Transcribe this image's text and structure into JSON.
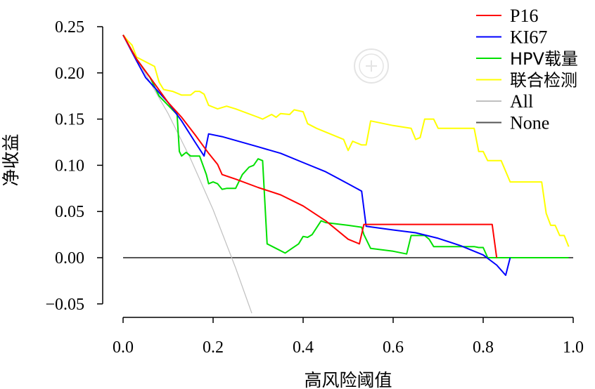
{
  "chart_data": {
    "type": "line",
    "title": "",
    "xlabel": "高风险阈值",
    "ylabel": "净收益",
    "xlim": [
      0,
      1.0
    ],
    "ylim": [
      -0.06,
      0.25
    ],
    "x_ticks": [
      "0.0",
      "0.2",
      "0.4",
      "0.6",
      "0.8",
      "1.0"
    ],
    "y_ticks": [
      "0.25",
      "0.20",
      "0.15",
      "0.10",
      "0.05",
      "0.00",
      "−0.05"
    ],
    "x_tick_values": [
      0,
      0.2,
      0.4,
      0.6,
      0.8,
      1.0
    ],
    "y_tick_values": [
      0.25,
      0.2,
      0.15,
      0.1,
      0.05,
      0.0,
      -0.05
    ],
    "legend_position": "top-right",
    "grid": false,
    "series": [
      {
        "name": "P16",
        "color": "#ff0000",
        "points": [
          [
            0.0,
            0.241
          ],
          [
            0.03,
            0.215
          ],
          [
            0.06,
            0.195
          ],
          [
            0.1,
            0.168
          ],
          [
            0.13,
            0.152
          ],
          [
            0.16,
            0.133
          ],
          [
            0.19,
            0.113
          ],
          [
            0.21,
            0.101
          ],
          [
            0.22,
            0.09
          ],
          [
            0.25,
            0.085
          ],
          [
            0.3,
            0.076
          ],
          [
            0.35,
            0.068
          ],
          [
            0.4,
            0.056
          ],
          [
            0.45,
            0.04
          ],
          [
            0.5,
            0.02
          ],
          [
            0.525,
            0.015
          ],
          [
            0.535,
            0.036
          ],
          [
            0.82,
            0.036
          ],
          [
            0.83,
            0.0
          ]
        ]
      },
      {
        "name": "KI67",
        "color": "#0000ff",
        "points": [
          [
            0.0,
            0.241
          ],
          [
            0.03,
            0.213
          ],
          [
            0.05,
            0.195
          ],
          [
            0.1,
            0.168
          ],
          [
            0.13,
            0.148
          ],
          [
            0.16,
            0.125
          ],
          [
            0.18,
            0.11
          ],
          [
            0.19,
            0.134
          ],
          [
            0.22,
            0.131
          ],
          [
            0.3,
            0.12
          ],
          [
            0.35,
            0.113
          ],
          [
            0.4,
            0.103
          ],
          [
            0.45,
            0.093
          ],
          [
            0.5,
            0.08
          ],
          [
            0.53,
            0.072
          ],
          [
            0.54,
            0.034
          ],
          [
            0.6,
            0.03
          ],
          [
            0.65,
            0.027
          ],
          [
            0.7,
            0.021
          ],
          [
            0.75,
            0.013
          ],
          [
            0.8,
            0.003
          ],
          [
            0.83,
            -0.008
          ],
          [
            0.85,
            -0.019
          ],
          [
            0.86,
            0.0
          ]
        ]
      },
      {
        "name": "HPV载量",
        "color": "#00e000",
        "points": [
          [
            0.0,
            0.241
          ],
          [
            0.03,
            0.215
          ],
          [
            0.06,
            0.195
          ],
          [
            0.08,
            0.175
          ],
          [
            0.1,
            0.165
          ],
          [
            0.12,
            0.155
          ],
          [
            0.125,
            0.115
          ],
          [
            0.13,
            0.11
          ],
          [
            0.14,
            0.114
          ],
          [
            0.15,
            0.11
          ],
          [
            0.17,
            0.11
          ],
          [
            0.185,
            0.09
          ],
          [
            0.19,
            0.08
          ],
          [
            0.2,
            0.082
          ],
          [
            0.21,
            0.08
          ],
          [
            0.22,
            0.074
          ],
          [
            0.23,
            0.075
          ],
          [
            0.25,
            0.075
          ],
          [
            0.265,
            0.09
          ],
          [
            0.28,
            0.098
          ],
          [
            0.29,
            0.1
          ],
          [
            0.3,
            0.107
          ],
          [
            0.31,
            0.105
          ],
          [
            0.32,
            0.015
          ],
          [
            0.34,
            0.01
          ],
          [
            0.36,
            0.005
          ],
          [
            0.375,
            0.01
          ],
          [
            0.39,
            0.015
          ],
          [
            0.4,
            0.023
          ],
          [
            0.41,
            0.022
          ],
          [
            0.42,
            0.025
          ],
          [
            0.44,
            0.04
          ],
          [
            0.45,
            0.038
          ],
          [
            0.5,
            0.035
          ],
          [
            0.53,
            0.033
          ],
          [
            0.535,
            0.025
          ],
          [
            0.55,
            0.01
          ],
          [
            0.6,
            0.007
          ],
          [
            0.63,
            0.004
          ],
          [
            0.64,
            0.024
          ],
          [
            0.67,
            0.024
          ],
          [
            0.68,
            0.02
          ],
          [
            0.69,
            0.012
          ],
          [
            0.7,
            0.012
          ],
          [
            0.78,
            0.012
          ],
          [
            0.79,
            0.011
          ],
          [
            0.8,
            0.011
          ],
          [
            0.81,
            0.0
          ],
          [
            0.99,
            0.0
          ]
        ]
      },
      {
        "name": "联合检测",
        "color": "#ffff00",
        "points": [
          [
            0.0,
            0.241
          ],
          [
            0.01,
            0.235
          ],
          [
            0.02,
            0.23
          ],
          [
            0.03,
            0.217
          ],
          [
            0.05,
            0.212
          ],
          [
            0.07,
            0.207
          ],
          [
            0.08,
            0.19
          ],
          [
            0.09,
            0.182
          ],
          [
            0.11,
            0.18
          ],
          [
            0.13,
            0.176
          ],
          [
            0.15,
            0.176
          ],
          [
            0.16,
            0.18
          ],
          [
            0.17,
            0.18
          ],
          [
            0.18,
            0.177
          ],
          [
            0.19,
            0.165
          ],
          [
            0.2,
            0.163
          ],
          [
            0.21,
            0.161
          ],
          [
            0.23,
            0.164
          ],
          [
            0.25,
            0.161
          ],
          [
            0.3,
            0.152
          ],
          [
            0.31,
            0.15
          ],
          [
            0.33,
            0.155
          ],
          [
            0.34,
            0.152
          ],
          [
            0.35,
            0.156
          ],
          [
            0.37,
            0.155
          ],
          [
            0.38,
            0.16
          ],
          [
            0.4,
            0.158
          ],
          [
            0.41,
            0.145
          ],
          [
            0.43,
            0.14
          ],
          [
            0.49,
            0.128
          ],
          [
            0.5,
            0.116
          ],
          [
            0.51,
            0.126
          ],
          [
            0.53,
            0.122
          ],
          [
            0.54,
            0.122
          ],
          [
            0.55,
            0.148
          ],
          [
            0.6,
            0.143
          ],
          [
            0.64,
            0.14
          ],
          [
            0.65,
            0.128
          ],
          [
            0.66,
            0.13
          ],
          [
            0.67,
            0.15
          ],
          [
            0.69,
            0.15
          ],
          [
            0.7,
            0.14
          ],
          [
            0.78,
            0.14
          ],
          [
            0.79,
            0.115
          ],
          [
            0.8,
            0.115
          ],
          [
            0.81,
            0.105
          ],
          [
            0.84,
            0.105
          ],
          [
            0.86,
            0.082
          ],
          [
            0.93,
            0.082
          ],
          [
            0.94,
            0.048
          ],
          [
            0.95,
            0.035
          ],
          [
            0.96,
            0.035
          ],
          [
            0.97,
            0.024
          ],
          [
            0.98,
            0.024
          ],
          [
            0.99,
            0.012
          ]
        ]
      },
      {
        "name": "All",
        "color": "#c0c0c0",
        "points": [
          [
            0.0,
            0.241
          ],
          [
            0.1,
            0.156
          ],
          [
            0.15,
            0.107
          ],
          [
            0.2,
            0.052
          ],
          [
            0.25,
            -0.011
          ],
          [
            0.286,
            -0.06
          ]
        ]
      },
      {
        "name": "None",
        "color": "#555555",
        "points": [
          [
            0.0,
            0.0
          ],
          [
            1.0,
            0.0
          ]
        ]
      }
    ]
  }
}
